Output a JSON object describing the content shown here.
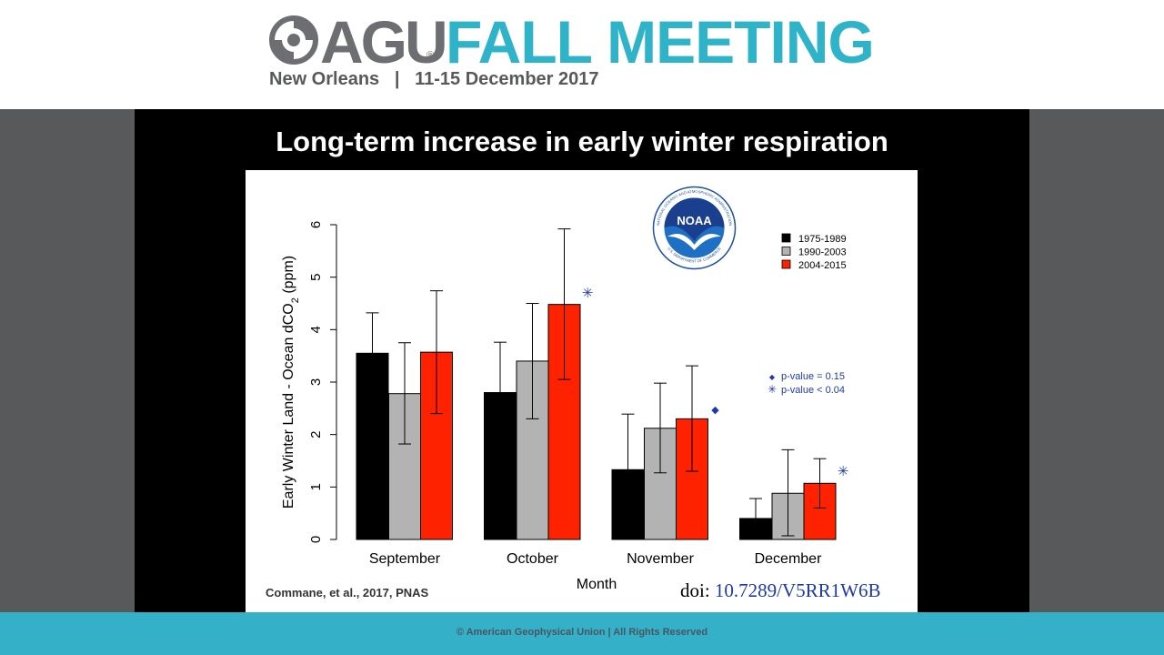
{
  "header": {
    "org": "AGU",
    "registered": "®",
    "event": "FALL MEETING",
    "location": "New Orleans",
    "separator": "|",
    "dates": "11-15 December 2017"
  },
  "slide": {
    "title": "Long-term increase in early winter respiration",
    "citation": "Commane, et al., 2017, PNAS",
    "doi_prefix": "doi:",
    "doi_link": "10.7289/V5RR1W6B"
  },
  "noaa": {
    "center_text": "NOAA",
    "ring_text_top": "NATIONAL OCEANIC AND ATMOSPHERIC ADMINISTRATION",
    "ring_text_bottom": "U.S. DEPARTMENT OF COMMERCE"
  },
  "footer": {
    "copyright": "© American Geophysical Union | All Rights Reserved"
  },
  "colors": {
    "agu_gray": "#6d6e71",
    "agu_teal": "#2fb3c8",
    "series_black": "#000000",
    "series_gray": "#b3b3b3",
    "series_red": "#ff2200",
    "marker_blue": "#1f3aa8"
  },
  "chart_data": {
    "type": "bar",
    "xlabel": "Month",
    "ylabel_parts": [
      "Early Winter Land - Ocean dCO",
      "2",
      " (ppm)"
    ],
    "ylim": [
      0,
      6
    ],
    "yticks": [
      0,
      1,
      2,
      3,
      4,
      5,
      6
    ],
    "categories": [
      "September",
      "October",
      "November",
      "December"
    ],
    "series": [
      {
        "name": "1975-1989",
        "color": "#000000",
        "values": [
          3.55,
          2.8,
          1.33,
          0.4
        ],
        "err_low": [
          2.78,
          1.83,
          0.27,
          0.02
        ],
        "err_high": [
          4.32,
          3.76,
          2.39,
          0.78
        ]
      },
      {
        "name": "1990-2003",
        "color": "#b3b3b3",
        "values": [
          2.78,
          3.4,
          2.12,
          0.88
        ],
        "err_low": [
          1.82,
          2.3,
          1.27,
          0.07
        ],
        "err_high": [
          3.75,
          4.5,
          2.98,
          1.71
        ]
      },
      {
        "name": "2004-2015",
        "color": "#ff2200",
        "values": [
          3.57,
          4.48,
          2.3,
          1.07
        ],
        "err_low": [
          2.4,
          3.05,
          1.3,
          0.6
        ],
        "err_high": [
          4.74,
          5.92,
          3.31,
          1.54
        ]
      }
    ],
    "significance_markers": [
      {
        "category": "October",
        "series": "2004-2015",
        "symbol": "✳",
        "y": 4.7
      },
      {
        "category": "November",
        "series": "2004-2015",
        "symbol": "◆",
        "y": 2.5
      },
      {
        "category": "December",
        "series": "2004-2015",
        "symbol": "✳",
        "y": 1.3
      }
    ],
    "significance_legend": [
      {
        "symbol": "◆",
        "label": "p-value = 0.15"
      },
      {
        "symbol": "✳",
        "label": "p-value < 0.04"
      }
    ]
  }
}
